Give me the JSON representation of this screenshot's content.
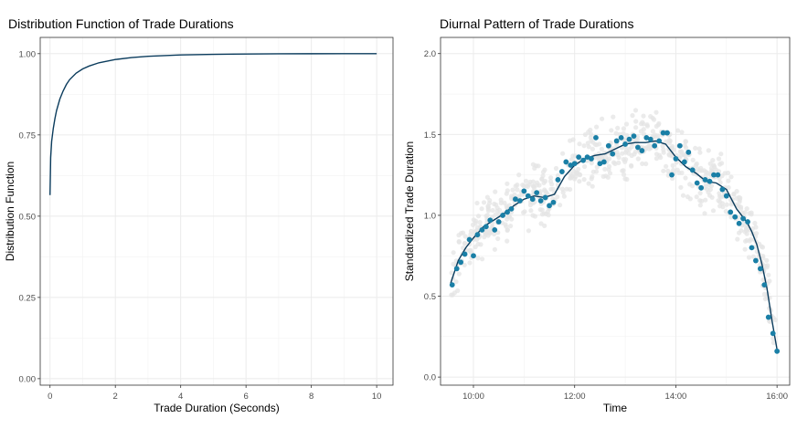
{
  "chart_data": [
    {
      "type": "line",
      "title": "Distribution Function of Trade Durations",
      "xlabel": "Trade Duration (Seconds)",
      "ylabel": "Distribution Function",
      "xlim": [
        -0.3,
        10.5
      ],
      "ylim": [
        -0.02,
        1.05
      ],
      "xticks": [
        0,
        2,
        4,
        6,
        8,
        10
      ],
      "yticks": [
        0.0,
        0.25,
        0.5,
        0.75,
        1.0
      ],
      "x_tick_labels": [
        "0",
        "2",
        "4",
        "6",
        "8",
        "10"
      ],
      "y_tick_labels": [
        "0.00",
        "0.25",
        "0.50",
        "0.75",
        "1.00"
      ],
      "grid": true,
      "color": "#0b3c5d",
      "series": [
        {
          "x": [
            0,
            0.02,
            0.05,
            0.1,
            0.15,
            0.2,
            0.3,
            0.4,
            0.5,
            0.6,
            0.8,
            1.0,
            1.2,
            1.5,
            2.0,
            2.5,
            3.0,
            3.5,
            4.0,
            5.0,
            6.0,
            7.0,
            8.0,
            9.0,
            10.0
          ],
          "y": [
            0.565,
            0.68,
            0.73,
            0.77,
            0.8,
            0.825,
            0.86,
            0.885,
            0.905,
            0.92,
            0.94,
            0.953,
            0.962,
            0.972,
            0.982,
            0.988,
            0.992,
            0.994,
            0.996,
            0.998,
            0.999,
            0.9995,
            0.9998,
            0.9999,
            1.0
          ]
        }
      ]
    },
    {
      "type": "scatter",
      "title": "Diurnal Pattern of Trade Durations",
      "xlabel": "Time",
      "ylabel": "Standardized Trade Duration",
      "xlim": [
        9.35,
        16.25
      ],
      "ylim": [
        -0.05,
        2.1
      ],
      "xticks": [
        10,
        12,
        14,
        16
      ],
      "yticks": [
        0.0,
        0.5,
        1.0,
        1.5,
        2.0
      ],
      "x_tick_labels": [
        "10:00",
        "12:00",
        "14:00",
        "16:00"
      ],
      "y_tick_labels": [
        "0.0",
        "0.5",
        "1.0",
        "1.5",
        "2.0"
      ],
      "grid": true,
      "background_color": "#e4e4e4",
      "point_color": "#1a7fa6",
      "line_color": "#0b3c5d",
      "average_points": {
        "x": [
          9.58,
          9.67,
          9.75,
          9.83,
          9.92,
          10.0,
          10.08,
          10.17,
          10.25,
          10.33,
          10.42,
          10.5,
          10.58,
          10.67,
          10.75,
          10.83,
          10.92,
          11.0,
          11.08,
          11.17,
          11.25,
          11.33,
          11.42,
          11.5,
          11.58,
          11.67,
          11.75,
          11.83,
          11.92,
          12.0,
          12.08,
          12.17,
          12.25,
          12.33,
          12.42,
          12.5,
          12.58,
          12.67,
          12.75,
          12.83,
          12.92,
          13.0,
          13.08,
          13.17,
          13.25,
          13.33,
          13.42,
          13.5,
          13.58,
          13.67,
          13.75,
          13.83,
          13.92,
          14.0,
          14.08,
          14.17,
          14.25,
          14.33,
          14.42,
          14.5,
          14.58,
          14.67,
          14.75,
          14.83,
          14.92,
          15.0,
          15.08,
          15.17,
          15.25,
          15.33,
          15.42,
          15.5,
          15.58,
          15.67,
          15.75,
          15.83,
          15.92,
          16.0
        ],
        "y": [
          0.57,
          0.67,
          0.71,
          0.76,
          0.85,
          0.75,
          0.88,
          0.91,
          0.93,
          0.97,
          0.91,
          0.96,
          1.0,
          1.02,
          1.04,
          1.1,
          1.09,
          1.15,
          1.12,
          1.1,
          1.14,
          1.09,
          1.11,
          1.06,
          1.08,
          1.22,
          1.27,
          1.33,
          1.31,
          1.32,
          1.36,
          1.34,
          1.36,
          1.35,
          1.48,
          1.32,
          1.33,
          1.43,
          1.38,
          1.46,
          1.48,
          1.44,
          1.47,
          1.49,
          1.42,
          1.4,
          1.48,
          1.47,
          1.43,
          1.46,
          1.51,
          1.51,
          1.25,
          1.35,
          1.43,
          1.33,
          1.39,
          1.28,
          1.2,
          1.17,
          1.22,
          1.21,
          1.25,
          1.25,
          1.16,
          1.12,
          1.02,
          0.99,
          0.95,
          0.98,
          0.96,
          0.8,
          0.72,
          0.67,
          0.57,
          0.37,
          0.27,
          0.16
        ]
      },
      "smooth_line": {
        "x": [
          9.55,
          9.7,
          9.85,
          10.0,
          10.2,
          10.4,
          10.6,
          10.8,
          11.0,
          11.2,
          11.4,
          11.6,
          11.8,
          12.0,
          12.2,
          12.4,
          12.6,
          12.8,
          13.0,
          13.2,
          13.4,
          13.6,
          13.8,
          14.0,
          14.2,
          14.4,
          14.6,
          14.8,
          15.0,
          15.2,
          15.4,
          15.5,
          15.6,
          15.7,
          15.8,
          15.9,
          16.0
        ],
        "y": [
          0.58,
          0.72,
          0.8,
          0.86,
          0.93,
          0.97,
          1.01,
          1.06,
          1.1,
          1.12,
          1.11,
          1.13,
          1.24,
          1.31,
          1.35,
          1.37,
          1.38,
          1.41,
          1.44,
          1.45,
          1.45,
          1.46,
          1.44,
          1.36,
          1.3,
          1.26,
          1.21,
          1.2,
          1.16,
          1.04,
          0.96,
          0.9,
          0.82,
          0.7,
          0.55,
          0.35,
          0.17
        ]
      }
    }
  ]
}
